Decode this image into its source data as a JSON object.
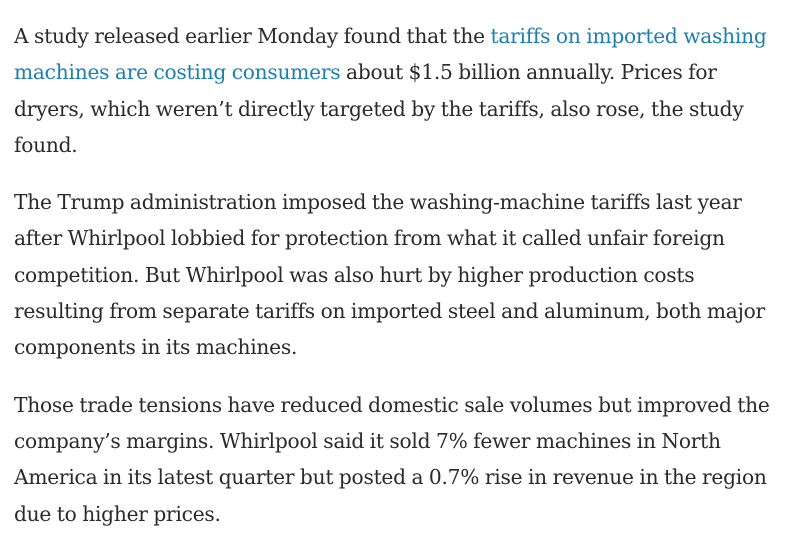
{
  "article": {
    "paragraph_1": {
      "lead": "A study released earlier Monday found that the ",
      "link": "tariffs on imported washing machines are costing consumers",
      "rest": " about $1.5 billion annually. Prices for dryers, which weren’t directly targeted by the tariffs, also rose, the study found."
    },
    "paragraph_2": "The Trump administration imposed the washing-machine tariffs last year after Whirlpool lobbied for protection from what it called unfair foreign competition. But Whirlpool was also hurt by higher production costs resulting from separate tariffs on imported steel and aluminum, both major components in its machines.",
    "paragraph_3": "Those trade tensions have reduced domestic sale volumes but improved the company’s margins. Whirlpool said it sold 7% fewer machines in North America in its latest quarter but posted a 0.7% rise in revenue in the region due to higher prices."
  },
  "colors": {
    "body_text": "#2a2a2a",
    "link": "#1b7fb0",
    "background": "#ffffff"
  }
}
